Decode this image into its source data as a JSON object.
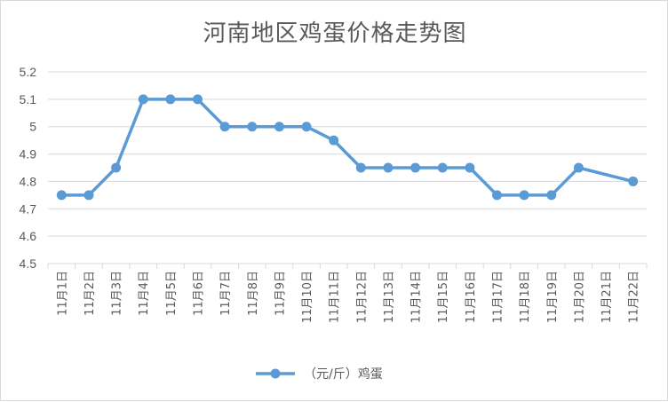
{
  "chart_data": {
    "type": "line",
    "title": "河南地区鸡蛋价格走势图",
    "xlabel": "",
    "ylabel": "",
    "ylim": [
      4.5,
      5.2
    ],
    "yticks": [
      "4.5",
      "4.6",
      "4.7",
      "4.8",
      "4.9",
      "5",
      "5.1",
      "5.2"
    ],
    "categories": [
      "11月1日",
      "11月2日",
      "11月3日",
      "11月4日",
      "11月5日",
      "11月6日",
      "11月7日",
      "11月8日",
      "11月9日",
      "11月10日",
      "11月11日",
      "11月12日",
      "11月13日",
      "11月14日",
      "11月15日",
      "11月16日",
      "11月17日",
      "11月18日",
      "11月19日",
      "11月20日",
      "11月21日",
      "11月22日"
    ],
    "series": [
      {
        "name": "（元/斤）鸡蛋",
        "color": "#5b9bd5",
        "values": [
          4.75,
          4.75,
          4.85,
          5.1,
          5.1,
          5.1,
          5.0,
          5.0,
          5.0,
          5.0,
          4.95,
          4.85,
          4.85,
          4.85,
          4.85,
          4.85,
          4.75,
          4.75,
          4.75,
          4.85,
          null,
          4.8
        ]
      }
    ],
    "grid": true,
    "legend": "bottom"
  }
}
